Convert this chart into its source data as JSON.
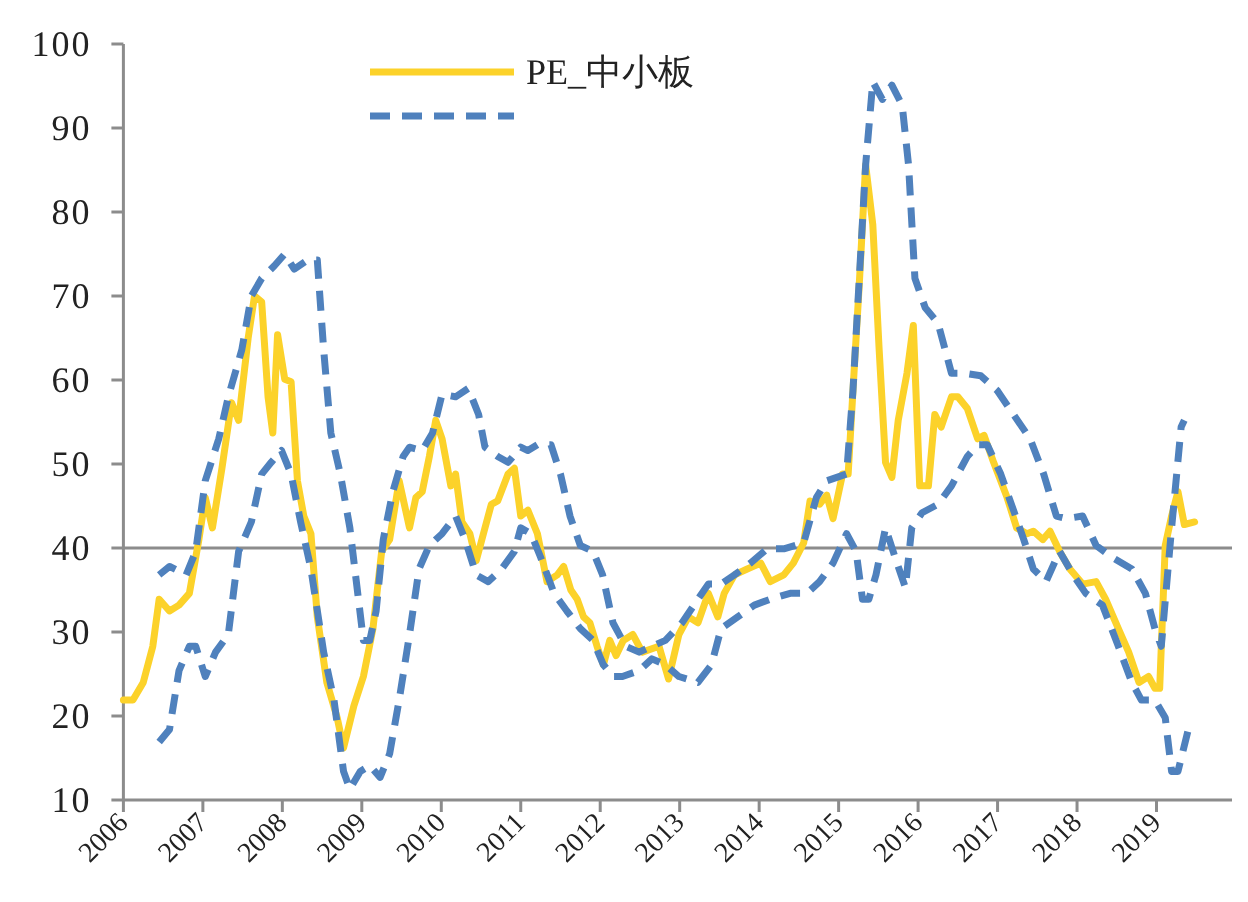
{
  "chart_data": {
    "type": "line",
    "legend": "top",
    "xlim": [
      2006,
      2019.95
    ],
    "xticks": [
      2006,
      2007,
      2008,
      2009,
      2010,
      2011,
      2012,
      2013,
      2014,
      2015,
      2016,
      2017,
      2018,
      2019
    ],
    "ylim": [
      10,
      100
    ],
    "yticks": [
      10,
      20,
      30,
      40,
      50,
      60,
      70,
      80,
      90,
      100
    ],
    "grid": false,
    "marker": "none",
    "ref_lines": [
      {
        "axis": "y",
        "value": 40,
        "color": "#8c8c8c"
      }
    ],
    "series": [
      {
        "name": "PE_中小板",
        "color": "#fcd22a",
        "line_style": "solid",
        "x": [
          2006.0,
          2006.12,
          2006.25,
          2006.37,
          2006.45,
          2006.58,
          2006.7,
          2006.83,
          2006.95,
          2007.03,
          2007.12,
          2007.24,
          2007.36,
          2007.45,
          2007.57,
          2007.65,
          2007.74,
          2007.82,
          2007.88,
          2007.94,
          2008.03,
          2008.11,
          2008.19,
          2008.27,
          2008.36,
          2008.44,
          2008.56,
          2008.69,
          2008.77,
          2008.9,
          2009.02,
          2009.14,
          2009.25,
          2009.35,
          2009.47,
          2009.6,
          2009.68,
          2009.76,
          2009.85,
          2009.93,
          2010.01,
          2010.12,
          2010.18,
          2010.26,
          2010.36,
          2010.44,
          2010.55,
          2010.63,
          2010.71,
          2010.84,
          2010.92,
          2011.0,
          2011.09,
          2011.21,
          2011.33,
          2011.46,
          2011.54,
          2011.63,
          2011.71,
          2011.79,
          2011.87,
          2011.96,
          2012.04,
          2012.12,
          2012.2,
          2012.29,
          2012.41,
          2012.53,
          2012.74,
          2012.86,
          2012.99,
          2013.11,
          2013.23,
          2013.36,
          2013.48,
          2013.56,
          2013.69,
          2013.85,
          2014.02,
          2014.14,
          2014.31,
          2014.43,
          2014.56,
          2014.64,
          2014.76,
          2014.85,
          2014.93,
          2015.05,
          2015.12,
          2015.18,
          2015.26,
          2015.34,
          2015.43,
          2015.51,
          2015.59,
          2015.67,
          2015.75,
          2015.86,
          2015.94,
          2016.02,
          2016.13,
          2016.21,
          2016.29,
          2016.42,
          2016.5,
          2016.62,
          2016.75,
          2016.83,
          2016.95,
          2017.12,
          2017.24,
          2017.37,
          2017.45,
          2017.57,
          2017.66,
          2017.78,
          2017.91,
          2018.07,
          2018.24,
          2018.36,
          2018.52,
          2018.65,
          2018.78,
          2018.9,
          2018.98,
          2019.04,
          2019.11,
          2019.19,
          2019.27,
          2019.35,
          2019.48
        ],
        "values": [
          21.9,
          21.9,
          24,
          28.3,
          33.9,
          32.5,
          33.2,
          34.6,
          41,
          46,
          42.4,
          49.5,
          57.3,
          55.2,
          65,
          70,
          69.3,
          58,
          53.7,
          65.4,
          60.1,
          59.8,
          48,
          43.8,
          41.7,
          31.8,
          24,
          19.8,
          16.2,
          21.2,
          24.7,
          30.4,
          39.6,
          41,
          48,
          42.4,
          46,
          46.7,
          50.9,
          55.2,
          53,
          47.4,
          48.8,
          43.1,
          41.7,
          38.5,
          42.4,
          45.2,
          45.6,
          48.8,
          49.5,
          43.8,
          44.5,
          41.7,
          36,
          36.8,
          37.8,
          35,
          33.9,
          31.8,
          31.1,
          28.3,
          26.1,
          29,
          27.2,
          29,
          29.7,
          27.6,
          28.3,
          24.4,
          29.7,
          31.8,
          31.1,
          34.6,
          31.8,
          34.6,
          36.8,
          37.5,
          38.2,
          36,
          36.8,
          38.2,
          40.6,
          45.6,
          45.2,
          46.3,
          43.5,
          48.8,
          48.8,
          58.7,
          71.4,
          85.6,
          78.5,
          63.6,
          50.2,
          48.4,
          55.2,
          60.8,
          66.5,
          47.4,
          47.4,
          55.9,
          54.4,
          58,
          58,
          56.6,
          53,
          53.4,
          50.2,
          46,
          42.4,
          41.7,
          42,
          41,
          42,
          39.6,
          37.5,
          35.7,
          36,
          33.9,
          30.4,
          27.6,
          24,
          24.7,
          23.3,
          23.3,
          40.3,
          43.8,
          46.7,
          42.8,
          43.1
        ]
      },
      {
        "color": "#4f81bd",
        "line_style": "dashed",
        "x": [
          2006.45,
          2006.58,
          2006.79,
          2006.91,
          2007.03,
          2007.2,
          2007.32,
          2007.49,
          2007.61,
          2007.74,
          2007.9,
          2008.03,
          2008.15,
          2008.32,
          2008.44,
          2008.52,
          2008.61,
          2008.73,
          2008.85,
          2008.94,
          2009.02,
          2009.1,
          2009.18,
          2009.27,
          2009.39,
          2009.52,
          2009.6,
          2009.76,
          2009.89,
          2010.01,
          2010.18,
          2010.34,
          2010.47,
          2010.55,
          2010.71,
          2010.84,
          2011.0,
          2011.09,
          2011.21,
          2011.38,
          2011.5,
          2011.62,
          2011.75,
          2011.91,
          2012.03,
          2012.16,
          2012.32,
          2012.49,
          2012.65,
          2012.82,
          2013.03,
          2013.23,
          2013.36,
          2013.52,
          2013.69,
          2013.89,
          2014.1,
          2014.31,
          2014.56,
          2014.72,
          2014.85,
          2015.1,
          2015.18,
          2015.26,
          2015.34,
          2015.43,
          2015.55,
          2015.67,
          2015.8,
          2015.88,
          2015.96,
          2016.09,
          2016.25,
          2016.42,
          2016.59,
          2016.79,
          2017.0,
          2017.2,
          2017.41,
          2017.58,
          2017.74,
          2017.87,
          2018.07,
          2018.24,
          2018.44,
          2018.69,
          2018.86,
          2018.98,
          2019.06,
          2019.19,
          2019.31,
          2019.35
        ],
        "values": [
          36.8,
          37.8,
          36.8,
          39.6,
          48,
          53,
          58,
          63.6,
          70,
          72.1,
          73.6,
          75,
          73.2,
          74.3,
          74.3,
          63.6,
          53.7,
          48.8,
          42.4,
          35.3,
          29,
          29,
          32.5,
          41,
          46.7,
          50.9,
          52,
          51.6,
          53.7,
          58.3,
          58,
          59,
          55.9,
          52,
          50.9,
          50.2,
          52,
          51.6,
          52.3,
          52.3,
          48.8,
          43.8,
          40.3,
          39.6,
          36.8,
          31.1,
          28.3,
          27.6,
          28.3,
          29,
          31.1,
          33.9,
          35.7,
          35.7,
          36.8,
          38.2,
          39.9,
          39.9,
          40.6,
          46,
          48,
          48.8,
          58.7,
          72.1,
          85.6,
          95.5,
          93.4,
          95.1,
          92.7,
          85.6,
          72.1,
          68.6,
          66.8,
          60.8,
          60.8,
          60.5,
          58.7,
          55.9,
          53,
          48.8,
          43.8,
          43.5,
          43.8,
          40.3,
          38.9,
          37.5,
          34.6,
          30.4,
          28.3,
          42.4,
          54.4,
          55.2
        ]
      },
      {
        "color": "#4f81bd",
        "line_style": "dashed",
        "x": [
          2006.45,
          2006.58,
          2006.7,
          2006.83,
          2006.91,
          2007.03,
          2007.16,
          2007.32,
          2007.45,
          2007.61,
          2007.74,
          2007.86,
          2007.99,
          2008.11,
          2008.23,
          2008.36,
          2008.52,
          2008.65,
          2008.77,
          2008.85,
          2008.98,
          2009.1,
          2009.23,
          2009.35,
          2009.47,
          2009.6,
          2009.72,
          2009.85,
          2010.01,
          2010.18,
          2010.3,
          2010.44,
          2010.59,
          2010.76,
          2010.92,
          2011.0,
          2011.13,
          2011.25,
          2011.42,
          2011.58,
          2011.75,
          2011.91,
          2012.04,
          2012.16,
          2012.28,
          2012.49,
          2012.65,
          2012.82,
          2012.99,
          2013.23,
          2013.4,
          2013.52,
          2013.73,
          2013.94,
          2014.14,
          2014.39,
          2014.6,
          2014.76,
          2014.93,
          2015.1,
          2015.22,
          2015.3,
          2015.38,
          2015.47,
          2015.59,
          2015.71,
          2015.84,
          2015.92,
          2016.05,
          2016.25,
          2016.42,
          2016.62,
          2016.75,
          2016.87,
          2017.04,
          2017.2,
          2017.33,
          2017.45,
          2017.61,
          2017.78,
          2017.95,
          2018.11,
          2018.32,
          2018.52,
          2018.69,
          2018.81,
          2018.98,
          2019.11,
          2019.19,
          2019.27,
          2019.4
        ],
        "values": [
          16.9,
          18.4,
          25.4,
          28.3,
          28.3,
          24.7,
          27.6,
          29.7,
          39.6,
          43.1,
          48.8,
          50.2,
          51.6,
          48.8,
          43.1,
          37.5,
          27.6,
          21.9,
          13.4,
          11.3,
          13.4,
          14.1,
          12.7,
          15.5,
          21.9,
          29.7,
          37.5,
          40.3,
          41.7,
          43.8,
          41,
          36.8,
          36,
          37.5,
          39.6,
          42.4,
          41.7,
          38.9,
          34.6,
          32.5,
          30.4,
          29,
          26.1,
          24.7,
          24.7,
          25.4,
          26.8,
          26.1,
          24.7,
          24,
          26.1,
          30.4,
          31.8,
          33.2,
          33.9,
          34.6,
          34.6,
          36,
          38.2,
          41.7,
          39.6,
          33.9,
          33.9,
          36.8,
          42.4,
          38.9,
          35.3,
          42.4,
          44.2,
          45.2,
          47.4,
          50.9,
          52.3,
          52.3,
          48.8,
          44.5,
          41,
          37.5,
          36,
          39.6,
          36.8,
          34.6,
          33.2,
          28.3,
          24,
          21.9,
          21.9,
          19.8,
          13.4,
          13.4,
          18.4
        ]
      }
    ]
  }
}
